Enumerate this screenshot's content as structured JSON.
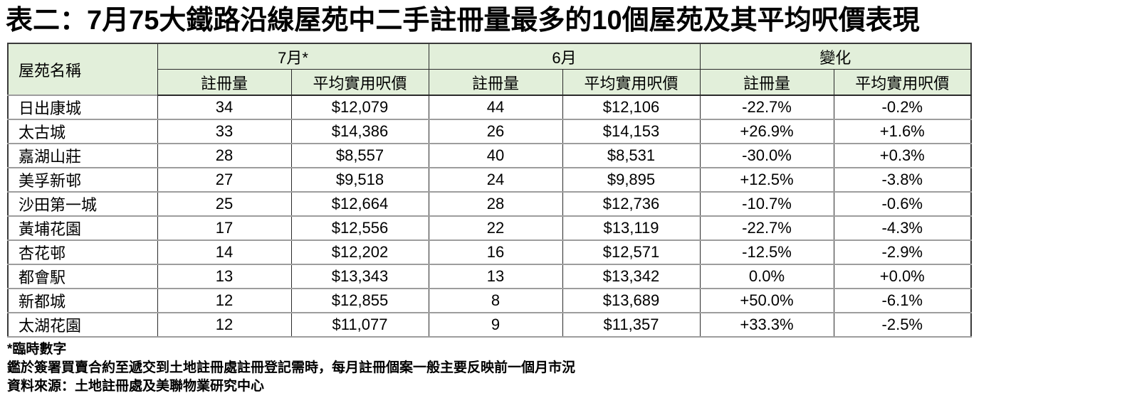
{
  "title": "表二：7月75大鐵路沿線屋苑中二手註冊量最多的10個屋苑及其平均呎價表現",
  "table": {
    "header": {
      "name_label": "屋苑名稱",
      "groups": [
        "7月*",
        "6月",
        "變化"
      ],
      "sub": [
        "註冊量",
        "平均實用呎價"
      ]
    },
    "col_keys": [
      "estate-name",
      "jul-registrations",
      "jul-avg-price",
      "jun-registrations",
      "jun-avg-price",
      "change-registrations",
      "change-avg-price"
    ],
    "rows": [
      [
        "日出康城",
        "34",
        "$12,079",
        "44",
        "$12,106",
        "-22.7%",
        "-0.2%"
      ],
      [
        "太古城",
        "33",
        "$14,386",
        "26",
        "$14,153",
        "+26.9%",
        "+1.6%"
      ],
      [
        "嘉湖山莊",
        "28",
        "$8,557",
        "40",
        "$8,531",
        "-30.0%",
        "+0.3%"
      ],
      [
        "美孚新邨",
        "27",
        "$9,518",
        "24",
        "$9,895",
        "+12.5%",
        "-3.8%"
      ],
      [
        "沙田第一城",
        "25",
        "$12,664",
        "28",
        "$12,736",
        "-10.7%",
        "-0.6%"
      ],
      [
        "黃埔花園",
        "17",
        "$12,556",
        "22",
        "$13,119",
        "-22.7%",
        "-4.3%"
      ],
      [
        "杏花邨",
        "14",
        "$12,202",
        "16",
        "$12,571",
        "-12.5%",
        "-2.9%"
      ],
      [
        "都會駅",
        "13",
        "$13,343",
        "13",
        "$13,342",
        "0.0%",
        "+0.0%"
      ],
      [
        "新都城",
        "12",
        "$12,855",
        "8",
        "$13,689",
        "+50.0%",
        "-6.1%"
      ],
      [
        "太湖花園",
        "12",
        "$11,077",
        "9",
        "$11,357",
        "+33.3%",
        "-2.5%"
      ]
    ]
  },
  "footnotes": [
    "*臨時數字",
    "鑑於簽署買賣合約至遞交到土地註冊處註冊登記需時，每月註冊個案一般主要反映前一個月市況",
    "資料來源：土地註冊處及美聯物業研究中心"
  ],
  "colors": {
    "header_bg": "#e2efda",
    "grid_dark": "#2a2a2a",
    "grid_gray": "#9d9d9d"
  }
}
